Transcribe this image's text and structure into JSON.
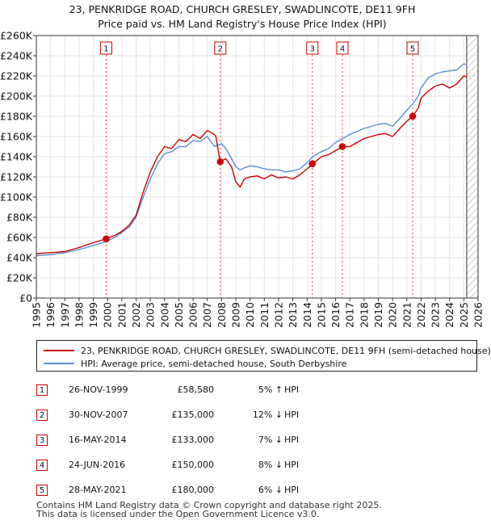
{
  "chart_data": {
    "type": "line",
    "title": "23, PENKRIDGE ROAD, CHURCH GRESLEY, SWADLINCOTE, DE11 9FH",
    "subtitle": "Price paid vs. HM Land Registry's House Price Index (HPI)",
    "xlim": [
      1995,
      2026
    ],
    "ylim": [
      0,
      260000
    ],
    "x_ticks": [
      "1995",
      "1996",
      "1997",
      "1998",
      "1999",
      "2000",
      "2001",
      "2002",
      "2003",
      "2004",
      "2005",
      "2006",
      "2007",
      "2008",
      "2009",
      "2010",
      "2011",
      "2012",
      "2013",
      "2014",
      "2015",
      "2016",
      "2017",
      "2018",
      "2019",
      "2020",
      "2021",
      "2022",
      "2023",
      "2024",
      "2025",
      "2026"
    ],
    "y_ticks": [
      {
        "value": 0,
        "label": "£0"
      },
      {
        "value": 20000,
        "label": "£20K"
      },
      {
        "value": 40000,
        "label": "£40K"
      },
      {
        "value": 60000,
        "label": "£60K"
      },
      {
        "value": 80000,
        "label": "£80K"
      },
      {
        "value": 100000,
        "label": "£100K"
      },
      {
        "value": 120000,
        "label": "£120K"
      },
      {
        "value": 140000,
        "label": "£140K"
      },
      {
        "value": 160000,
        "label": "£160K"
      },
      {
        "value": 180000,
        "label": "£180K"
      },
      {
        "value": 200000,
        "label": "£200K"
      },
      {
        "value": 220000,
        "label": "£220K"
      },
      {
        "value": 240000,
        "label": "£240K"
      },
      {
        "value": 260000,
        "label": "£260K"
      }
    ],
    "grid": true,
    "future_hatch_from": 2025.2,
    "series": [
      {
        "name": "23, PENKRIDGE ROAD, CHURCH GRESLEY, SWADLINCOTE, DE11 9FH (semi-detached house)",
        "color": "#cc0000",
        "x": [
          1995.0,
          1996.0,
          1997.0,
          1998.0,
          1998.8,
          1999.9,
          2000.5,
          2001.0,
          2001.5,
          2002.0,
          2002.5,
          2003.0,
          2003.5,
          2004.0,
          2004.5,
          2005.0,
          2005.5,
          2006.0,
          2006.5,
          2007.0,
          2007.5,
          2007.6,
          2007.9,
          2008.3,
          2008.7,
          2009.0,
          2009.3,
          2009.6,
          2010.0,
          2010.5,
          2011.0,
          2011.5,
          2012.0,
          2012.5,
          2013.0,
          2013.5,
          2014.0,
          2014.4,
          2015.0,
          2015.5,
          2016.0,
          2016.5,
          2017.0,
          2017.5,
          2018.0,
          2018.5,
          2019.0,
          2019.5,
          2020.0,
          2020.5,
          2021.0,
          2021.4,
          2021.8,
          2022.0,
          2022.5,
          2023.0,
          2023.5,
          2024.0,
          2024.5,
          2025.0,
          2025.2
        ],
        "y": [
          44000,
          45000,
          46000,
          50000,
          54000,
          58580,
          62000,
          66000,
          72000,
          82000,
          105000,
          125000,
          140000,
          150000,
          148000,
          157000,
          155000,
          162000,
          158000,
          166000,
          162000,
          160000,
          135000,
          138000,
          130000,
          115000,
          110000,
          118000,
          120000,
          121000,
          118000,
          122000,
          119000,
          120000,
          118000,
          122000,
          128000,
          133000,
          140000,
          142000,
          146000,
          150000,
          150000,
          154000,
          158000,
          160000,
          162000,
          163000,
          160000,
          168000,
          175000,
          180000,
          188000,
          198000,
          205000,
          210000,
          212000,
          208000,
          212000,
          220000,
          219000
        ]
      },
      {
        "name": "HPI: Average price, semi-detached house, South Derbyshire",
        "color": "#5b8fd4",
        "x": [
          1995.0,
          1996.0,
          1997.0,
          1998.0,
          1999.0,
          1999.9,
          2000.5,
          2001.0,
          2001.5,
          2002.0,
          2002.5,
          2003.0,
          2003.5,
          2004.0,
          2004.5,
          2005.0,
          2005.5,
          2006.0,
          2006.5,
          2007.0,
          2007.5,
          2008.0,
          2008.3,
          2008.7,
          2009.0,
          2009.3,
          2009.6,
          2010.0,
          2010.5,
          2011.0,
          2011.5,
          2012.0,
          2012.5,
          2013.0,
          2013.5,
          2014.0,
          2014.4,
          2015.0,
          2015.5,
          2016.0,
          2016.5,
          2017.0,
          2017.5,
          2018.0,
          2018.5,
          2019.0,
          2019.5,
          2020.0,
          2020.5,
          2021.0,
          2021.4,
          2021.8,
          2022.0,
          2022.5,
          2023.0,
          2023.5,
          2024.0,
          2024.5,
          2025.0,
          2025.2
        ],
        "y": [
          42000,
          43000,
          45000,
          48000,
          52000,
          56000,
          60000,
          65000,
          70000,
          80000,
          100000,
          118000,
          133000,
          143000,
          145000,
          150000,
          150000,
          156000,
          155000,
          160000,
          150000,
          153000,
          148000,
          138000,
          130000,
          127000,
          129000,
          131000,
          130000,
          128000,
          127000,
          127000,
          125000,
          126000,
          128000,
          134000,
          140000,
          145000,
          148000,
          154000,
          158000,
          162000,
          165000,
          168000,
          170000,
          172000,
          173000,
          170000,
          178000,
          186000,
          192000,
          200000,
          208000,
          218000,
          222000,
          224000,
          225000,
          226000,
          232000,
          231000
        ]
      }
    ],
    "transactions": [
      {
        "num": "1",
        "x": 1999.9,
        "y": 58580,
        "date": "26-NOV-1999",
        "price": "£58,580",
        "pct": "5% ↑",
        "rel": "HPI"
      },
      {
        "num": "2",
        "x": 2007.91,
        "y": 135000,
        "date": "30-NOV-2007",
        "price": "£135,000",
        "pct": "12% ↓",
        "rel": "HPI"
      },
      {
        "num": "3",
        "x": 2014.37,
        "y": 133000,
        "date": "16-MAY-2014",
        "price": "£133,000",
        "pct": "7% ↓",
        "rel": "HPI"
      },
      {
        "num": "4",
        "x": 2016.48,
        "y": 150000,
        "date": "24-JUN-2016",
        "price": "£150,000",
        "pct": "8% ↓",
        "rel": "HPI"
      },
      {
        "num": "5",
        "x": 2021.41,
        "y": 180000,
        "date": "28-MAY-2021",
        "price": "£180,000",
        "pct": "6% ↓",
        "rel": "HPI"
      }
    ]
  },
  "footer": {
    "line1": "Contains HM Land Registry data © Crown copyright and database right 2025.",
    "line2": "This data is licensed under the Open Government Licence v3.0."
  }
}
